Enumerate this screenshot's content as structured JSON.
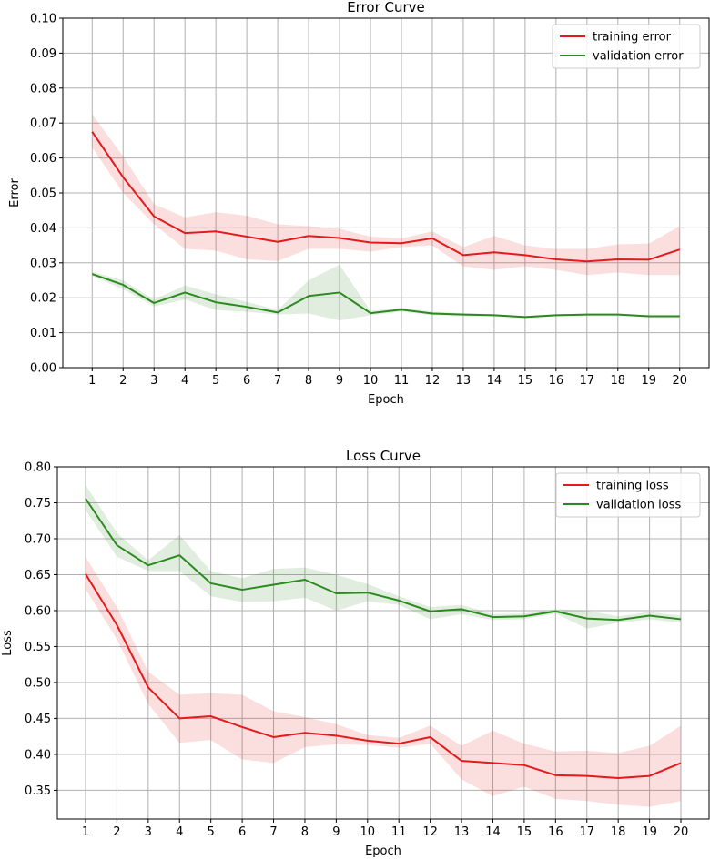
{
  "chart_data": [
    {
      "type": "line",
      "title": "Error Curve",
      "xlabel": "Epoch",
      "ylabel": "Error",
      "x": [
        1,
        2,
        3,
        4,
        5,
        6,
        7,
        8,
        9,
        10,
        11,
        12,
        13,
        14,
        15,
        16,
        17,
        18,
        19,
        20
      ],
      "xticks": [
        "1",
        "2",
        "3",
        "4",
        "5",
        "6",
        "7",
        "8",
        "9",
        "10",
        "11",
        "12",
        "13",
        "14",
        "15",
        "16",
        "17",
        "18",
        "19",
        "20"
      ],
      "ylim": [
        0.0,
        0.1
      ],
      "yticks": [
        "0.00",
        "0.01",
        "0.02",
        "0.03",
        "0.04",
        "0.05",
        "0.06",
        "0.07",
        "0.08",
        "0.09",
        "0.10"
      ],
      "grid": true,
      "legend_position": "top-right",
      "series": [
        {
          "name": "training error",
          "color": "#e41a1c",
          "values": [
            0.0675,
            0.0545,
            0.0433,
            0.0385,
            0.039,
            0.0375,
            0.036,
            0.0377,
            0.0371,
            0.0358,
            0.0356,
            0.037,
            0.0322,
            0.033,
            0.0322,
            0.031,
            0.0304,
            0.031,
            0.0309,
            0.0338
          ],
          "lower": [
            0.063,
            0.05,
            0.041,
            0.034,
            0.0335,
            0.031,
            0.0305,
            0.034,
            0.034,
            0.0332,
            0.0345,
            0.035,
            0.029,
            0.028,
            0.029,
            0.028,
            0.0265,
            0.0272,
            0.0265,
            0.0265
          ],
          "upper": [
            0.0725,
            0.0605,
            0.0468,
            0.043,
            0.0445,
            0.0435,
            0.041,
            0.0405,
            0.0397,
            0.0375,
            0.037,
            0.039,
            0.0345,
            0.0377,
            0.035,
            0.034,
            0.034,
            0.0353,
            0.0355,
            0.0405
          ]
        },
        {
          "name": "validation error",
          "color": "#2b8a1f",
          "values": [
            0.0268,
            0.0237,
            0.0185,
            0.0215,
            0.0187,
            0.0174,
            0.0158,
            0.0205,
            0.0215,
            0.0156,
            0.0166,
            0.0155,
            0.0152,
            0.015,
            0.0145,
            0.015,
            0.0152,
            0.0152,
            0.0147,
            0.0147
          ],
          "lower": [
            0.0262,
            0.0225,
            0.0175,
            0.0195,
            0.0165,
            0.016,
            0.0152,
            0.0155,
            0.0135,
            0.015,
            0.016,
            0.015,
            0.0148,
            0.0147,
            0.0142,
            0.0147,
            0.015,
            0.015,
            0.0144,
            0.0144
          ],
          "upper": [
            0.0274,
            0.025,
            0.0195,
            0.0235,
            0.021,
            0.0188,
            0.0165,
            0.025,
            0.0295,
            0.0162,
            0.0172,
            0.016,
            0.0156,
            0.0153,
            0.0148,
            0.0153,
            0.0155,
            0.0155,
            0.015,
            0.015
          ]
        }
      ]
    },
    {
      "type": "line",
      "title": "Loss Curve",
      "xlabel": "Epoch",
      "ylabel": "Loss",
      "x": [
        1,
        2,
        3,
        4,
        5,
        6,
        7,
        8,
        9,
        10,
        11,
        12,
        13,
        14,
        15,
        16,
        17,
        18,
        19,
        20
      ],
      "xticks": [
        "1",
        "2",
        "3",
        "4",
        "5",
        "6",
        "7",
        "8",
        "9",
        "10",
        "11",
        "12",
        "13",
        "14",
        "15",
        "16",
        "17",
        "18",
        "19",
        "20"
      ],
      "ylim": [
        0.31,
        0.8
      ],
      "ytick_values": [
        0.35,
        0.4,
        0.45,
        0.5,
        0.55,
        0.6,
        0.65,
        0.7,
        0.75,
        0.8
      ],
      "yticks": [
        "0.35",
        "0.40",
        "0.45",
        "0.50",
        "0.55",
        "0.60",
        "0.65",
        "0.70",
        "0.75",
        "0.80"
      ],
      "grid": true,
      "legend_position": "top-right",
      "series": [
        {
          "name": "training loss",
          "color": "#e41a1c",
          "values": [
            0.651,
            0.58,
            0.493,
            0.45,
            0.453,
            0.438,
            0.424,
            0.43,
            0.426,
            0.419,
            0.415,
            0.424,
            0.391,
            0.388,
            0.385,
            0.371,
            0.37,
            0.367,
            0.37,
            0.388
          ],
          "lower": [
            0.63,
            0.56,
            0.47,
            0.416,
            0.42,
            0.393,
            0.388,
            0.41,
            0.414,
            0.413,
            0.409,
            0.415,
            0.365,
            0.342,
            0.355,
            0.338,
            0.335,
            0.33,
            0.327,
            0.335
          ],
          "upper": [
            0.675,
            0.605,
            0.515,
            0.483,
            0.485,
            0.483,
            0.46,
            0.452,
            0.442,
            0.427,
            0.423,
            0.44,
            0.412,
            0.433,
            0.415,
            0.404,
            0.405,
            0.402,
            0.412,
            0.44
          ]
        },
        {
          "name": "validation loss",
          "color": "#2b8a1f",
          "values": [
            0.756,
            0.691,
            0.663,
            0.677,
            0.638,
            0.629,
            0.636,
            0.643,
            0.624,
            0.625,
            0.614,
            0.599,
            0.602,
            0.591,
            0.592,
            0.599,
            0.589,
            0.587,
            0.593,
            0.588
          ],
          "lower": [
            0.74,
            0.675,
            0.655,
            0.655,
            0.62,
            0.612,
            0.613,
            0.618,
            0.6,
            0.613,
            0.608,
            0.588,
            0.595,
            0.587,
            0.588,
            0.596,
            0.575,
            0.583,
            0.588,
            0.583
          ],
          "upper": [
            0.775,
            0.708,
            0.67,
            0.705,
            0.655,
            0.645,
            0.658,
            0.66,
            0.65,
            0.637,
            0.62,
            0.605,
            0.608,
            0.595,
            0.596,
            0.602,
            0.6,
            0.592,
            0.598,
            0.593
          ]
        }
      ]
    }
  ]
}
